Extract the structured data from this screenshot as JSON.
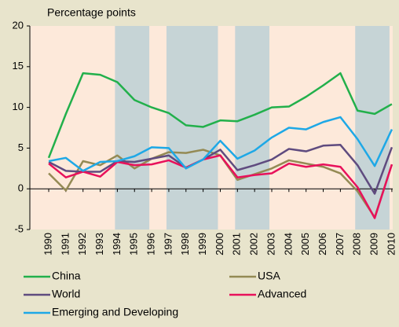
{
  "chart_data": {
    "type": "line",
    "y_label": "Percentage points",
    "x": [
      1990,
      1991,
      1992,
      1993,
      1994,
      1995,
      1996,
      1997,
      1998,
      1999,
      2000,
      2001,
      2002,
      2003,
      2004,
      2005,
      2006,
      2007,
      2008,
      2009,
      2010
    ],
    "xlim": [
      1988.9,
      2010.05
    ],
    "ylim": [
      -5,
      20
    ],
    "yticks": [
      20,
      15,
      10,
      5,
      0,
      -5
    ],
    "shaded": [
      [
        1994,
        1996
      ],
      [
        1997,
        2000
      ],
      [
        2001,
        2003
      ],
      [
        2008,
        2010
      ]
    ],
    "shade_color": "#c6d4d6",
    "plot_background": "#fde9da",
    "series": [
      {
        "name": "China",
        "color": "#22b04b",
        "values": [
          3.8,
          9.2,
          14.2,
          14.0,
          13.1,
          10.9,
          10.0,
          9.3,
          7.8,
          7.6,
          8.4,
          8.3,
          9.1,
          10.0,
          10.1,
          11.3,
          12.7,
          14.2,
          9.6,
          9.2,
          10.4
        ]
      },
      {
        "name": "USA",
        "color": "#948a54",
        "values": [
          1.9,
          -0.2,
          3.4,
          2.9,
          4.1,
          2.5,
          3.7,
          4.5,
          4.4,
          4.8,
          4.1,
          1.1,
          1.8,
          2.5,
          3.5,
          3.1,
          2.7,
          1.9,
          -0.3,
          -3.5,
          3.0
        ]
      },
      {
        "name": "World",
        "color": "#5f4b7f",
        "values": [
          3.3,
          2.2,
          2.1,
          2.1,
          3.4,
          3.3,
          3.7,
          4.1,
          2.6,
          3.6,
          4.8,
          2.3,
          2.9,
          3.6,
          4.9,
          4.6,
          5.3,
          5.4,
          2.9,
          -0.6,
          5.1
        ]
      },
      {
        "name": "Advanced",
        "color": "#e8115b",
        "values": [
          3.1,
          1.4,
          2.1,
          1.5,
          3.3,
          2.9,
          3.0,
          3.5,
          2.6,
          3.6,
          4.1,
          1.4,
          1.7,
          1.9,
          3.1,
          2.7,
          3.0,
          2.7,
          0.2,
          -3.6,
          3.0
        ]
      },
      {
        "name": "Emerging and Developing",
        "color": "#1ea8e6",
        "values": [
          3.4,
          3.8,
          2.2,
          3.3,
          3.4,
          4.0,
          5.1,
          5.0,
          2.5,
          3.6,
          5.9,
          3.7,
          4.7,
          6.3,
          7.5,
          7.3,
          8.2,
          8.8,
          6.1,
          2.8,
          7.3
        ]
      }
    ]
  }
}
